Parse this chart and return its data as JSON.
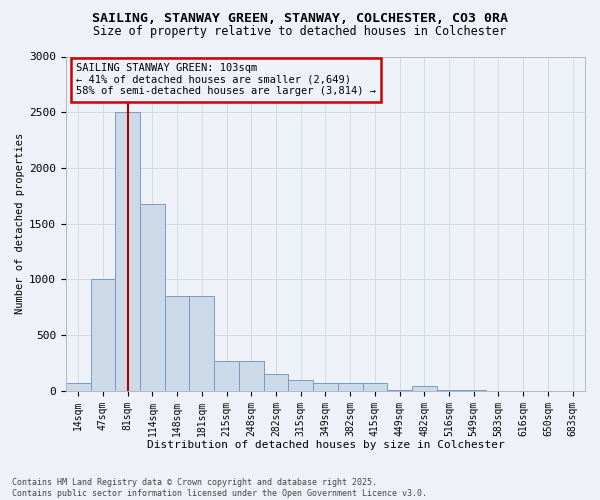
{
  "title_line1": "SAILING, STANWAY GREEN, STANWAY, COLCHESTER, CO3 0RA",
  "title_line2": "Size of property relative to detached houses in Colchester",
  "xlabel": "Distribution of detached houses by size in Colchester",
  "ylabel": "Number of detached properties",
  "footnote": "Contains HM Land Registry data © Crown copyright and database right 2025.\nContains public sector information licensed under the Open Government Licence v3.0.",
  "bar_color": "#ccd9e8",
  "bar_edge_color": "#7a9abf",
  "annotation_box_color": "#cc0000",
  "vline_color": "#aa0000",
  "grid_color": "#d0d8e0",
  "background_color": "#eef2f8",
  "categories": [
    "14sqm",
    "47sqm",
    "81sqm",
    "114sqm",
    "148sqm",
    "181sqm",
    "215sqm",
    "248sqm",
    "282sqm",
    "315sqm",
    "349sqm",
    "382sqm",
    "415sqm",
    "449sqm",
    "482sqm",
    "516sqm",
    "549sqm",
    "583sqm",
    "616sqm",
    "650sqm",
    "683sqm"
  ],
  "values": [
    70,
    1000,
    2500,
    1680,
    850,
    850,
    270,
    270,
    155,
    100,
    75,
    70,
    75,
    5,
    40,
    5,
    5,
    0,
    0,
    0,
    0
  ],
  "property_size_label": "103sqm",
  "property_name": "SAILING STANWAY GREEN",
  "pct_smaller": 41,
  "n_smaller": 2649,
  "pct_larger_semi": 58,
  "n_larger_semi": 3814,
  "vline_x_index": 2,
  "ylim": [
    0,
    3000
  ],
  "yticks": [
    0,
    500,
    1000,
    1500,
    2000,
    2500,
    3000
  ]
}
